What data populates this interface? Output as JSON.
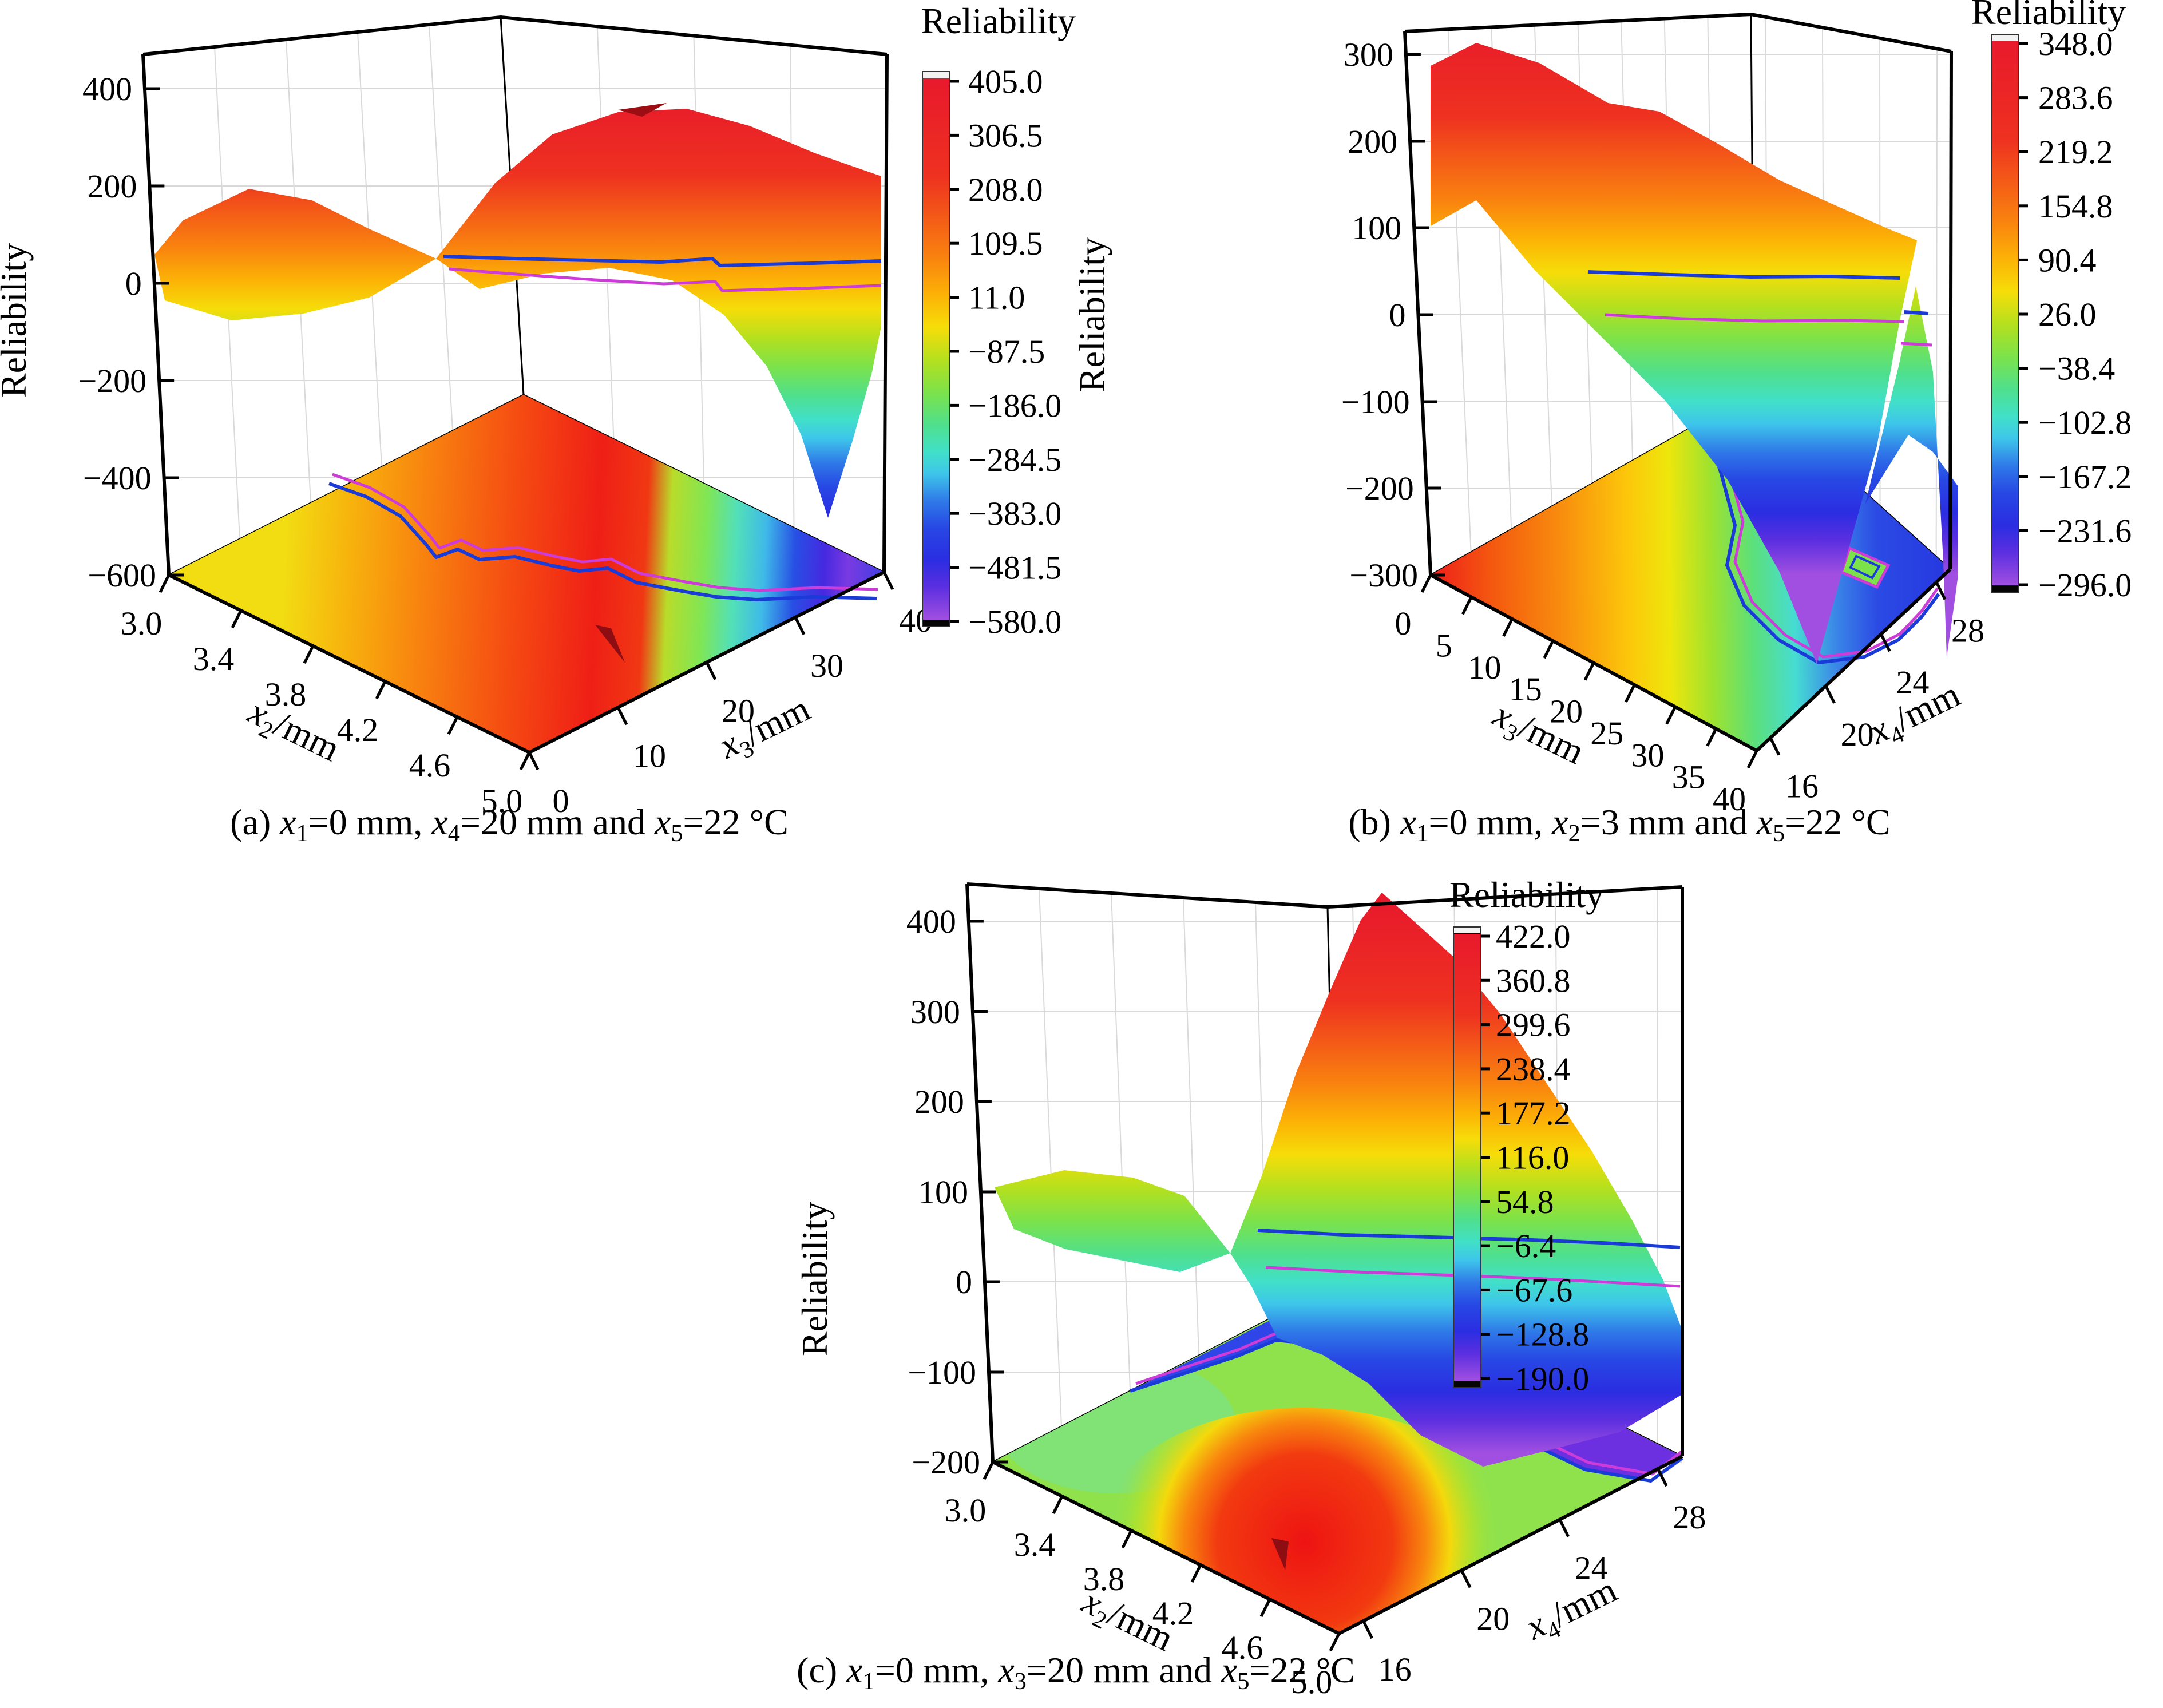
{
  "figure": {
    "colormap": [
      [
        0.0,
        "#e8192c"
      ],
      [
        0.18,
        "#ee3120"
      ],
      [
        0.26,
        "#f45c17"
      ],
      [
        0.33,
        "#f9820f"
      ],
      [
        0.4,
        "#fcb206"
      ],
      [
        0.46,
        "#f6dd09"
      ],
      [
        0.52,
        "#b5e01e"
      ],
      [
        0.58,
        "#7ce24a"
      ],
      [
        0.64,
        "#4fe08d"
      ],
      [
        0.69,
        "#41e0c8"
      ],
      [
        0.73,
        "#3ec6ea"
      ],
      [
        0.78,
        "#2f7ae8"
      ],
      [
        0.83,
        "#2748e4"
      ],
      [
        0.89,
        "#2b2de2"
      ],
      [
        0.94,
        "#5c2fe0"
      ],
      [
        1.0,
        "#a14fe0"
      ]
    ],
    "contour_colors": {
      "blue": "#1b3bd8",
      "magenta": "#cd3bd8"
    },
    "subplots": [
      {
        "id": "a",
        "caption": [
          {
            "t": "(a) "
          },
          {
            "t": "x",
            "i": 1
          },
          {
            "t": "1",
            "s": 1
          },
          {
            "t": "=0 mm, "
          },
          {
            "t": "x",
            "i": 1
          },
          {
            "t": "4",
            "s": 1
          },
          {
            "t": "=20 mm and "
          },
          {
            "t": "x",
            "i": 1
          },
          {
            "t": "5",
            "s": 1
          },
          {
            "t": "=22 °C"
          }
        ],
        "z_axis": {
          "title": "Reliability",
          "ticks": [
            "400",
            "200",
            "0",
            "−200",
            "−400",
            "−600"
          ]
        },
        "x_axis": {
          "label": [
            {
              "t": "x",
              "i": 1
            },
            {
              "t": "2",
              "s": 1
            },
            {
              "t": "/mm"
            }
          ],
          "ticks": [
            "3.0",
            "3.4",
            "3.8",
            "4.2",
            "4.6",
            "5.0"
          ]
        },
        "y_axis": {
          "label": [
            {
              "t": "x",
              "i": 1
            },
            {
              "t": "3",
              "s": 1
            },
            {
              "t": "/mm"
            }
          ],
          "ticks": [
            "0",
            "10",
            "20",
            "30",
            "40"
          ]
        },
        "colorbar": {
          "title": "Reliability",
          "ticks": [
            "405.0",
            "306.5",
            "208.0",
            "109.5",
            "11.0",
            "−87.5",
            "−186.0",
            "−284.5",
            "−383.0",
            "−481.5",
            "−580.0"
          ]
        }
      },
      {
        "id": "b",
        "caption": [
          {
            "t": "(b) "
          },
          {
            "t": "x",
            "i": 1
          },
          {
            "t": "1",
            "s": 1
          },
          {
            "t": "=0 mm, "
          },
          {
            "t": "x",
            "i": 1
          },
          {
            "t": "2",
            "s": 1
          },
          {
            "t": "=3 mm and "
          },
          {
            "t": "x",
            "i": 1
          },
          {
            "t": "5",
            "s": 1
          },
          {
            "t": "=22 °C"
          }
        ],
        "z_axis": {
          "title": "Reliability",
          "ticks": [
            "300",
            "200",
            "100",
            "0",
            "−100",
            "−200",
            "−300"
          ]
        },
        "x_axis": {
          "label": [
            {
              "t": "x",
              "i": 1
            },
            {
              "t": "3",
              "s": 1
            },
            {
              "t": "/mm"
            }
          ],
          "ticks": [
            "0",
            "5",
            "10",
            "15",
            "20",
            "25",
            "30",
            "35",
            "40"
          ]
        },
        "y_axis": {
          "label": [
            {
              "t": "x",
              "i": 1
            },
            {
              "t": "4",
              "s": 1
            },
            {
              "t": "/mm"
            }
          ],
          "ticks": [
            "16",
            "20",
            "24",
            "28"
          ]
        },
        "colorbar": {
          "title": "Reliability",
          "ticks": [
            "348.0",
            "283.6",
            "219.2",
            "154.8",
            "90.4",
            "26.0",
            "−38.4",
            "−102.8",
            "−167.2",
            "−231.6",
            "−296.0"
          ]
        }
      },
      {
        "id": "c",
        "caption": [
          {
            "t": "(c) "
          },
          {
            "t": "x",
            "i": 1
          },
          {
            "t": "1",
            "s": 1
          },
          {
            "t": "=0 mm, "
          },
          {
            "t": "x",
            "i": 1
          },
          {
            "t": "3",
            "s": 1
          },
          {
            "t": "=20 mm and "
          },
          {
            "t": "x",
            "i": 1
          },
          {
            "t": "5",
            "s": 1
          },
          {
            "t": "=22 °C"
          }
        ],
        "z_axis": {
          "title": "Reliability",
          "ticks": [
            "400",
            "300",
            "200",
            "100",
            "0",
            "−100",
            "−200"
          ]
        },
        "x_axis": {
          "label": [
            {
              "t": "x",
              "i": 1
            },
            {
              "t": "2",
              "s": 1
            },
            {
              "t": "/mm"
            }
          ],
          "ticks": [
            "3.0",
            "3.4",
            "3.8",
            "4.2",
            "4.6",
            "5.0"
          ]
        },
        "y_axis": {
          "label": [
            {
              "t": "x",
              "i": 1
            },
            {
              "t": "4",
              "s": 1
            },
            {
              "t": "/mm"
            }
          ],
          "ticks": [
            "16",
            "20",
            "24",
            "28"
          ]
        },
        "colorbar": {
          "title": "Reliability",
          "ticks": [
            "422.0",
            "360.8",
            "299.6",
            "238.4",
            "177.2",
            "116.0",
            "54.8",
            "−6.4",
            "−67.6",
            "−128.8",
            "−190.0"
          ]
        }
      }
    ]
  },
  "chart_data": [
    {
      "subplot": "a",
      "type": "surface3d_with_contour_projection",
      "title": "Reliability",
      "fixed_conditions": "x1=0 mm, x4=20 mm and x5=22 °C",
      "x": {
        "name": "x2/mm",
        "range": [
          3.0,
          5.0
        ],
        "ticks": [
          3.0,
          3.4,
          3.8,
          4.2,
          4.6,
          5.0
        ]
      },
      "y": {
        "name": "x3/mm",
        "range": [
          0,
          40
        ],
        "ticks": [
          0,
          10,
          20,
          30,
          40
        ]
      },
      "z": {
        "name": "Reliability",
        "axis_range": [
          -600,
          400
        ],
        "colorbar_range": [
          -580.0,
          405.0
        ]
      },
      "surface_grid": {
        "x2": [
          3.0,
          3.5,
          4.0,
          4.5,
          5.0
        ],
        "x3": [
          0,
          10,
          20,
          30,
          40
        ],
        "z": [
          [
            95,
            120,
            150,
            170,
            160
          ],
          [
            200,
            230,
            250,
            240,
            220
          ],
          [
            240,
            300,
            360,
            330,
            280
          ],
          [
            230,
            330,
            390,
            300,
            150
          ],
          [
            120,
            180,
            60,
            -200,
            -430
          ]
        ]
      },
      "surface_contour_levels_approx": [
        50,
        0
      ],
      "z_peak_approx": 390,
      "z_min_approx": -430
    },
    {
      "subplot": "b",
      "type": "surface3d_with_contour_projection",
      "title": "Reliability",
      "fixed_conditions": "x1=0 mm, x2=3 mm and x5=22 °C",
      "x": {
        "name": "x3/mm",
        "range": [
          0,
          40
        ],
        "ticks": [
          0,
          5,
          10,
          15,
          20,
          25,
          30,
          35,
          40
        ]
      },
      "y": {
        "name": "x4/mm",
        "range": [
          15,
          29
        ],
        "ticks": [
          16,
          20,
          24,
          28
        ]
      },
      "z": {
        "name": "Reliability",
        "axis_range": [
          -300,
          300
        ],
        "colorbar_range": [
          -296.0,
          348.0
        ]
      },
      "surface_grid": {
        "x3": [
          0,
          10,
          20,
          30,
          40
        ],
        "x4": [
          16,
          20,
          24,
          28
        ],
        "z": [
          [
            330,
            320,
            300,
            280
          ],
          [
            250,
            230,
            200,
            170
          ],
          [
            120,
            90,
            60,
            30
          ],
          [
            -80,
            -150,
            -260,
            -120
          ],
          [
            -280,
            -60,
            60,
            -270
          ]
        ]
      },
      "surface_contour_levels_approx": [
        50,
        0
      ],
      "z_peak_approx": 330,
      "z_min_approx": -280
    },
    {
      "subplot": "c",
      "type": "surface3d_with_contour_projection",
      "title": "Reliability",
      "fixed_conditions": "x1=0 mm, x3=20 mm and x5=22 °C",
      "x": {
        "name": "x2/mm",
        "range": [
          3.0,
          5.0
        ],
        "ticks": [
          3.0,
          3.4,
          3.8,
          4.2,
          4.6,
          5.0
        ]
      },
      "y": {
        "name": "x4/mm",
        "range": [
          15,
          29
        ],
        "ticks": [
          16,
          20,
          24,
          28
        ]
      },
      "z": {
        "name": "Reliability",
        "axis_range": [
          -200,
          400
        ],
        "colorbar_range": [
          -190.0,
          422.0
        ]
      },
      "surface_grid": {
        "x2": [
          3.0,
          3.5,
          4.0,
          4.5,
          5.0
        ],
        "x4": [
          16,
          20,
          24,
          28
        ],
        "z": [
          [
            155,
            150,
            140,
            130
          ],
          [
            60,
            120,
            110,
            90
          ],
          [
            270,
            380,
            300,
            150
          ],
          [
            430,
            420,
            250,
            0
          ],
          [
            380,
            300,
            60,
            -150
          ]
        ]
      },
      "surface_contour_levels_approx": [
        50,
        0
      ],
      "z_peak_approx": 430,
      "z_min_approx": -150
    }
  ]
}
